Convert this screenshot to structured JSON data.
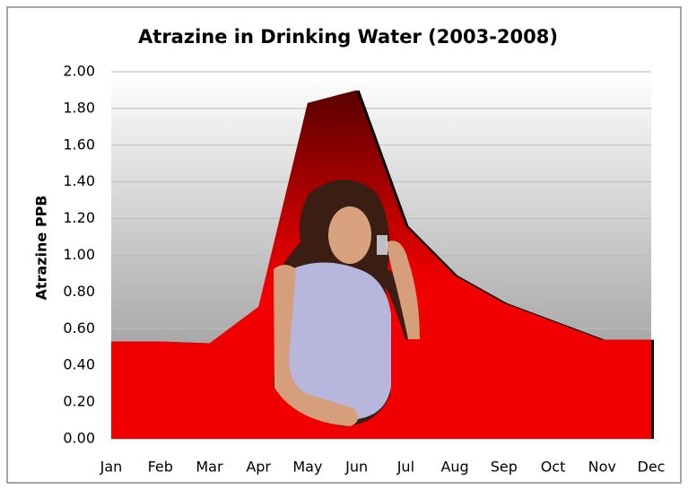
{
  "chart_data": {
    "type": "area",
    "title": "Atrazine in Drinking Water (2003-2008)",
    "y_label": "Atrazine PPB",
    "categories": [
      "Jan",
      "Feb",
      "Mar",
      "Apr",
      "May",
      "Jun",
      "Jul",
      "Aug",
      "Sep",
      "Oct",
      "Nov",
      "Dec"
    ],
    "values": [
      0.53,
      0.53,
      0.52,
      0.72,
      1.83,
      1.9,
      1.16,
      0.89,
      0.74,
      0.64,
      0.54,
      0.54
    ],
    "color": "#f00000",
    "ylim": [
      0,
      2
    ],
    "yticks": [
      {
        "value": 0,
        "label": "0.00"
      },
      {
        "value": 0.2,
        "label": "0.20"
      },
      {
        "value": 0.4,
        "label": "0.40"
      },
      {
        "value": 0.6,
        "label": "0.60"
      },
      {
        "value": 0.8,
        "label": "0.80"
      },
      {
        "value": 1,
        "label": "1.00"
      },
      {
        "value": 1.2,
        "label": "1.20"
      },
      {
        "value": 1.4,
        "label": "1.40"
      },
      {
        "value": 1.6,
        "label": "1.60"
      },
      {
        "value": 1.8,
        "label": "1.80"
      },
      {
        "value": 2,
        "label": "2.00"
      }
    ],
    "grid": true
  }
}
